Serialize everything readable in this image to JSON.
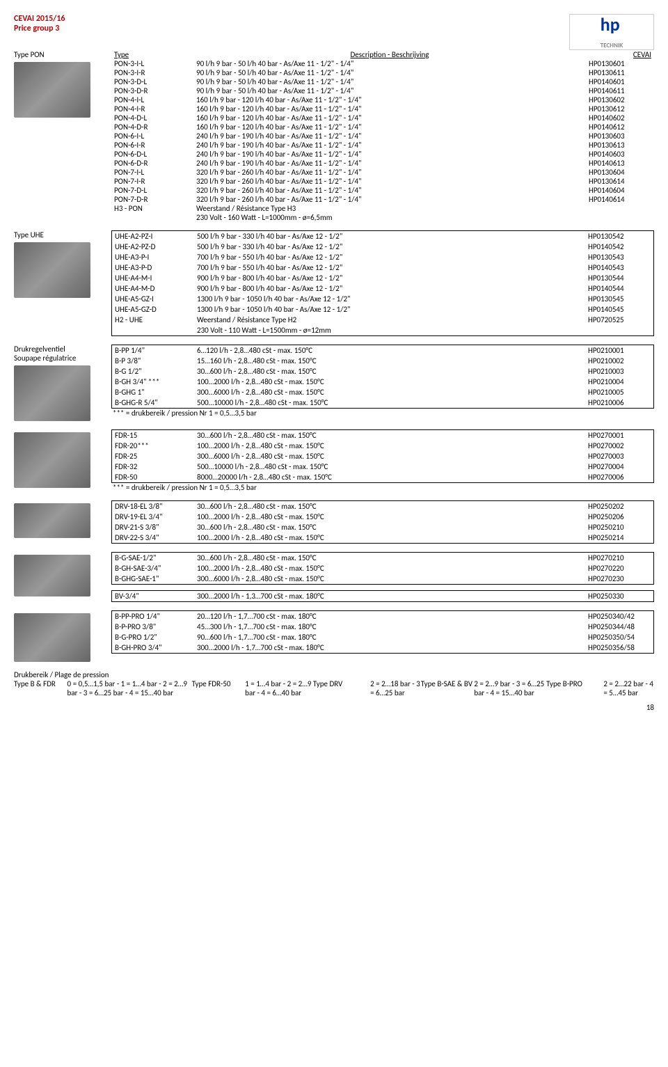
{
  "header": {
    "title1": "CEVAI  2015/16",
    "title2": "Price group 3",
    "logo_main": "hp",
    "logo_sub": "TECHNIK"
  },
  "table_header": {
    "c1": "Type",
    "c2": "Description  -  Beschrijving",
    "c3": "CEVAI"
  },
  "pon": {
    "label": "Type PON",
    "rows": [
      [
        "PON-3-I-L",
        "90 l/h 9 bar - 50 l/h 40 bar - As/Axe 11 - 1/2\" - 1/4\"",
        "HP0130601"
      ],
      [
        "PON-3-I-R",
        "90 l/h 9 bar - 50 l/h 40 bar - As/Axe 11 - 1/2\" - 1/4\"",
        "HP0130611"
      ],
      [
        "PON-3-D-L",
        "90 l/h 9 bar - 50 l/h 40 bar - As/Axe 11 - 1/2\" - 1/4\"",
        "HP0140601"
      ],
      [
        "PON-3-D-R",
        "90 l/h 9 bar - 50 l/h 40 bar - As/Axe 11 - 1/2\" - 1/4\"",
        "HP0140611"
      ],
      [
        "PON-4-I-L",
        "160 l/h 9 bar - 120 l/h 40 bar - As/Axe 11 - 1/2\" - 1/4\"",
        "HP0130602"
      ],
      [
        "PON-4-I-R",
        "160 l/h 9 bar - 120 l/h 40 bar - As/Axe 11 - 1/2\" - 1/4\"",
        "HP0130612"
      ],
      [
        "PON-4-D-L",
        "160 l/h 9 bar - 120 l/h 40 bar - As/Axe 11 - 1/2\" - 1/4\"",
        "HP0140602"
      ],
      [
        "PON-4-D-R",
        "160 l/h 9 bar - 120 l/h 40 bar - As/Axe 11 - 1/2\" - 1/4\"",
        "HP0140612"
      ],
      [
        "PON-6-I-L",
        "240 l/h 9 bar - 190 l/h 40 bar - As/Axe 11 - 1/2\" - 1/4\"",
        "HP0130603"
      ],
      [
        "PON-6-I-R",
        "240 l/h 9 bar - 190 l/h 40 bar - As/Axe 11 - 1/2\" - 1/4\"",
        "HP0130613"
      ],
      [
        "PON-6-D-L",
        "240 l/h 9 bar - 190 l/h 40 bar - As/Axe 11 - 1/2\" - 1/4\"",
        "HP0140603"
      ],
      [
        "PON-6-D-R",
        "240 l/h 9 bar - 190 l/h 40 bar - As/Axe 11 - 1/2\" - 1/4\"",
        "HP0140613"
      ],
      [
        "PON-7-I-L",
        "320 l/h 9 bar - 260 l/h 40 bar - As/Axe 11 - 1/2\" - 1/4\"",
        "HP0130604"
      ],
      [
        "PON-7-I-R",
        "320 l/h 9 bar - 260 l/h 40 bar - As/Axe 11 - 1/2\" - 1/4\"",
        "HP0130614"
      ],
      [
        "PON-7-D-L",
        "320 l/h 9 bar - 260 l/h 40 bar - As/Axe 11 - 1/2\" - 1/4\"",
        "HP0140604"
      ],
      [
        "PON-7-D-R",
        "320 l/h 9 bar - 260 l/h 40 bar - As/Axe 11 - 1/2\" - 1/4\"",
        "HP0140614"
      ],
      [
        "H3 - PON",
        "Weerstand / Résistance Type H3",
        ""
      ],
      [
        "",
        "230 Volt - 160 Watt - L=1000mm - ø=6,5mm",
        ""
      ]
    ]
  },
  "uhe": {
    "label": "Type UHE",
    "rows": [
      [
        "UHE-A2-PZ-I",
        "500 l/h 9 bar - 330 l/h 40 bar - As/Axe 12 - 1/2\"",
        "HP0130542"
      ],
      [
        "UHE-A2-PZ-D",
        "500 l/h 9 bar - 330 l/h 40 bar - As/Axe 12 - 1/2\"",
        "HP0140542"
      ],
      [
        "UHE-A3-P-I",
        "700 l/h 9 bar - 550 l/h 40 bar - As/Axe 12 - 1/2\"",
        "HP0130543"
      ],
      [
        "UHE-A3-P-D",
        "700 l/h 9 bar - 550 l/h 40 bar - As/Axe 12 - 1/2\"",
        "HP0140543"
      ],
      [
        "UHE-A4-M-I",
        "900 l/h 9 bar - 800 l/h 40 bar - As/Axe 12 - 1/2\"",
        "HP0130544"
      ],
      [
        "UHE-A4-M-D",
        "900 l/h 9 bar - 800 l/h 40 bar - As/Axe 12 - 1/2\"",
        "HP0140544"
      ],
      [
        "UHE-A5-GZ-I",
        "1300 l/h 9 bar - 1050 l/h 40 bar - As/Axe 12 - 1/2\"",
        "HP0130545"
      ],
      [
        "UHE-A5-GZ-D",
        "1300 l/h 9 bar - 1050 l/h 40 bar - As/Axe 12 - 1/2\"",
        "HP0140545"
      ],
      [
        "H2 - UHE",
        "Weerstand / Résistance Type H2",
        "HP0720525"
      ],
      [
        "",
        "230 Volt - 110 Watt - L=1500mm - ø=12mm",
        ""
      ]
    ]
  },
  "druk": {
    "label1": "Drukregelventiel",
    "label2": "Soupape régulatrice",
    "b1": {
      "rows": [
        [
          "B-PP   1/4\"",
          "6…120 l/h - 2,8…480 cSt - max. 150°C",
          "HP0210001"
        ],
        [
          "B-P   3/8\"",
          "15…160 l/h - 2,8…480 cSt - max. 150°C",
          "HP0210002"
        ],
        [
          "B-G   1/2\"",
          "30…600 l/h - 2,8…480 cSt - max. 150°C",
          "HP0210003"
        ],
        [
          "B-GH   3/4\" ***",
          "100…2000 l/h - 2,8…480 cSt - max. 150°C",
          "HP0210004"
        ],
        [
          "B-GHG   1\"",
          "300…6000 l/h - 2,8…480 cSt - max. 150°C",
          "HP0210005"
        ],
        [
          "B-GHG-R   5/4\"",
          "500…10000 l/h - 2,8…480 cSt - max. 150°C",
          "HP0210006"
        ]
      ],
      "note": "*** = drukbereik / pression Nr 1 = 0,5…3,5 bar"
    },
    "fdr": {
      "rows": [
        [
          "FDR-15",
          "30…600 l/h - 2,8…480 cSt - max. 150°C",
          "HP0270001"
        ],
        [
          "FDR-20***",
          "100…2000 l/h - 2,8…480 cSt - max. 150°C",
          "HP0270002"
        ],
        [
          "FDR-25",
          "300…6000 l/h - 2,8…480 cSt - max. 150°C",
          "HP0270003"
        ],
        [
          "FDR-32",
          "500…10000 l/h - 2,8…480 cSt - max. 150°C",
          "HP0270004"
        ],
        [
          "FDR-50",
          "8000…20000 l/h - 2,8…480 cSt - max. 150°C",
          "HP0270006"
        ]
      ],
      "note": "*** = drukbereik / pression Nr 1 = 0,5…3,5 bar"
    },
    "drv": {
      "rows": [
        [
          "DRV-18-EL  3/8\"",
          "30…600 l/h - 2,8…480 cSt - max. 150°C",
          "HP0250202"
        ],
        [
          "DRV-19-EL  3/4\"",
          "100…2000 l/h - 2,8…480 cSt - max. 150°C",
          "HP0250206"
        ],
        [
          "DRV-21-S  3/8\"",
          "30…600 l/h - 2,8…480 cSt - max. 150°C",
          "HP0250210"
        ],
        [
          "DRV-22-S  3/4\"",
          "100…2000 l/h - 2,8…480 cSt - max. 150°C",
          "HP0250214"
        ]
      ]
    },
    "bsae": {
      "rows": [
        [
          "B-G-SAE-1/2\"",
          "30…600 l/h - 2,8…480 cSt - max. 150°C",
          "HP0270210"
        ],
        [
          "B-GH-SAE-3/4\"",
          "100…2000 l/h - 2,8…480 cSt - max. 150°C",
          "HP0270220"
        ],
        [
          "B-GHG-SAE-1\"",
          "300…6000 l/h - 2,8…480 cSt - max. 150°C",
          "HP0270230"
        ]
      ]
    },
    "bv": {
      "rows": [
        [
          "BV-3/4\"",
          "300…2000 l/h - 1,3…700 cSt - max. 180°C",
          "HP0250330"
        ]
      ]
    },
    "bpro": {
      "rows": [
        [
          "B-PP-PRO   1/4\"",
          "20…120 l/h - 1,7…700 cSt - max. 180°C",
          "HP0250340/42"
        ],
        [
          "B-P-PRO   3/8\"",
          "45…300 l/h - 1,7…700 cSt - max. 180°C",
          "HP0250344/48"
        ],
        [
          "B-G-PRO   1/2\"",
          "90…600 l/h - 1,7…700 cSt - max. 180°C",
          "HP0250350/54"
        ],
        [
          "B-GH-PRO   3/4\"",
          "300…2000 l/h - 1,7…700 cSt - max. 180°C",
          "HP0250356/58"
        ]
      ]
    }
  },
  "footer": {
    "title": "Drukbereik / Plage de pression",
    "rows": [
      [
        "Type B & FDR",
        "0 = 0,5…1,5 bar  -  1 = 1…4 bar  -  2 = 2…9 bar  -  3 = 6…25 bar  -  4 = 15…40 bar"
      ],
      [
        "Type FDR-50",
        "1 = 1…4 bar  -  2 = 2…9 bar  -  4 = 6…40 bar"
      ],
      [
        "Type DRV",
        "2 = 2…18 bar  -  3 = 6…25 bar"
      ],
      [
        "Type B-SAE & BV",
        "2 = 2…9 bar  -  3 = 6…25 bar  -  4 = 15…40 bar"
      ],
      [
        "Type B-PRO",
        "2 = 2…22 bar  -  4 = 5…45 bar"
      ]
    ]
  },
  "page": "18"
}
